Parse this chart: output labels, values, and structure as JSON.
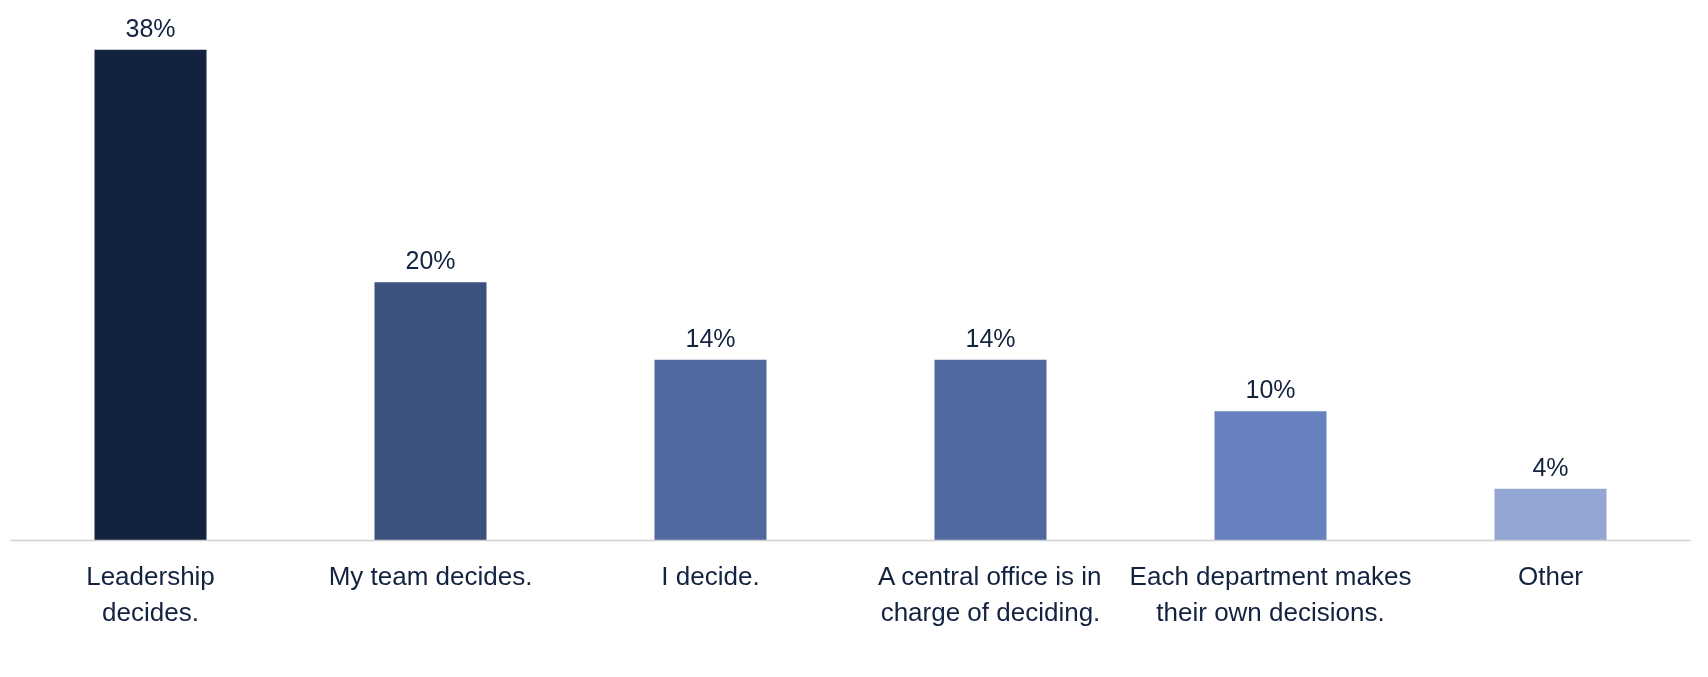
{
  "chart_data": {
    "type": "bar",
    "categories": [
      "Leadership decides.",
      "My team decides.",
      "I decide.",
      "A central office is in charge of deciding.",
      "Each department makes their own decisions.",
      "Other"
    ],
    "values": [
      38,
      20,
      14,
      14,
      10,
      4
    ],
    "colors": [
      "#13223f",
      "#3b527e",
      "#506a9f",
      "#506a9f",
      "#6680c0",
      "#94a6d3"
    ],
    "value_labels": [
      "38%",
      "20%",
      "14%",
      "14%",
      "10%",
      "4%"
    ],
    "grid": false
  }
}
